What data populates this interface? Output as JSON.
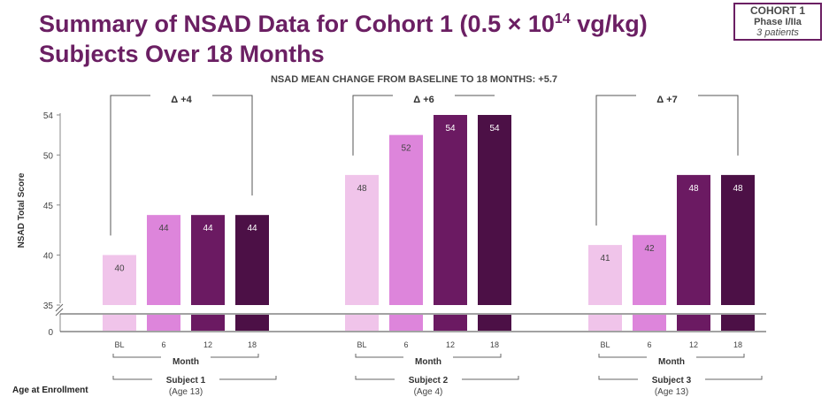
{
  "header": {
    "title_pre": "Summary of NSAD Data for Cohort 1 (0.5 × 10",
    "title_sup": "14",
    "title_post": " vg/kg)",
    "title_line2": "Subjects Over 18 Months"
  },
  "badge": {
    "line1": "COHORT 1",
    "line2": "Phase I/IIa",
    "line3": "3 patients"
  },
  "footer": {
    "age_label": "Age at Enrollment"
  },
  "chart_data": {
    "type": "bar",
    "title": "NSAD MEAN CHANGE FROM BASELINE TO 18 MONTHS: +5.7",
    "ylabel": "NSAD Total Score",
    "ylim": [
      35,
      55
    ],
    "yticks": [
      35,
      40,
      45,
      50,
      54
    ],
    "zero_tick": "0",
    "axis_break": true,
    "grid": false,
    "categories": [
      "BL",
      "6",
      "12",
      "18"
    ],
    "month_label": "Month",
    "series_colors": [
      "#f0c4ea",
      "#dd85db",
      "#6b1a62",
      "#4c1046"
    ],
    "groups": [
      {
        "name": "Subject 1",
        "age": "(Age 13)",
        "values": [
          40,
          44,
          44,
          44
        ],
        "delta": "Δ +4"
      },
      {
        "name": "Subject 2",
        "age": "(Age 4)",
        "values": [
          48,
          52,
          54,
          54
        ],
        "delta": "Δ +6"
      },
      {
        "name": "Subject 3",
        "age": "(Age 13)",
        "values": [
          41,
          42,
          48,
          48
        ],
        "delta": "Δ +7"
      }
    ]
  }
}
